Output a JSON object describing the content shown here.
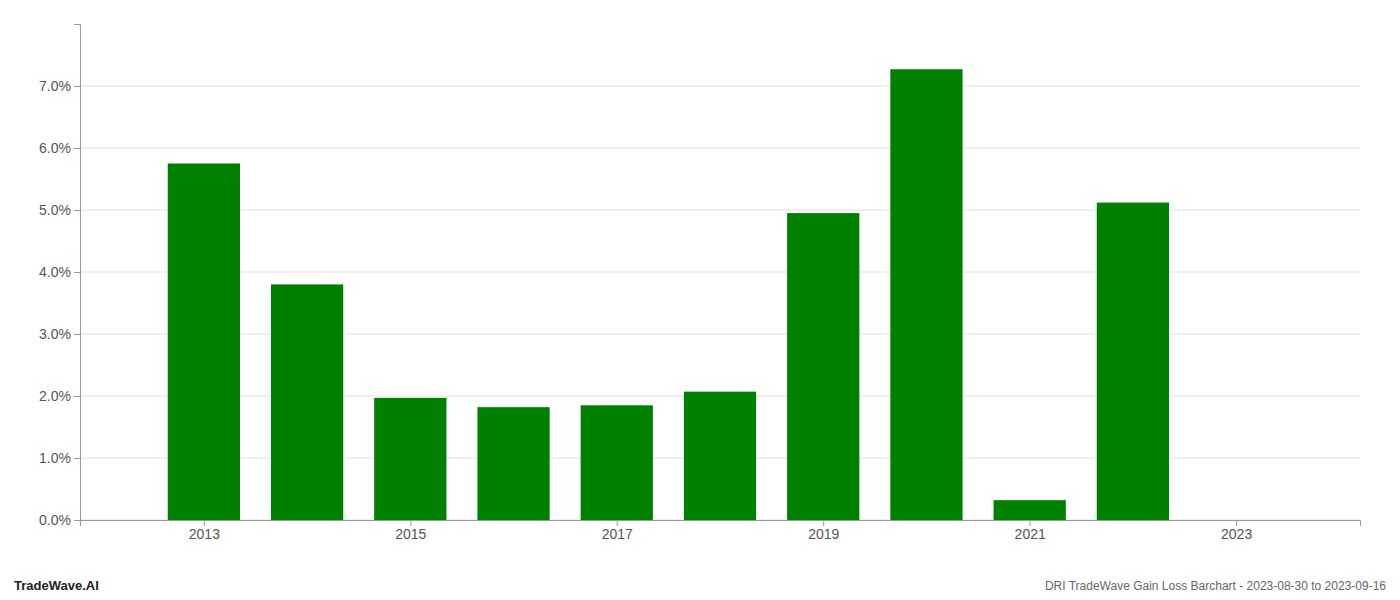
{
  "chart_data": {
    "type": "bar",
    "title": "DRI TradeWave Gain Loss Barchart - 2023-08-30 to 2023-09-16",
    "annotations": [
      "TradeWave.AI"
    ],
    "x": [
      2013,
      2014,
      2015,
      2016,
      2017,
      2018,
      2019,
      2020,
      2021,
      2022
    ],
    "values": [
      0.0575,
      0.038,
      0.0197,
      0.0182,
      0.0185,
      0.0207,
      0.0495,
      0.0727,
      0.0032,
      0.0512
    ],
    "color": "#008000",
    "xlim": [
      2011.8,
      2024.2
    ],
    "xticks": [
      2013,
      2015,
      2017,
      2019,
      2021,
      2023
    ],
    "ylim": [
      0.0,
      0.08
    ],
    "yticks": [
      {
        "value": 0.0,
        "label": "0.0%"
      },
      {
        "value": 0.01,
        "label": "1.0%"
      },
      {
        "value": 0.02,
        "label": "2.0%"
      },
      {
        "value": 0.03,
        "label": "3.0%"
      },
      {
        "value": 0.04,
        "label": "4.0%"
      },
      {
        "value": 0.05,
        "label": "5.0%"
      },
      {
        "value": 0.06,
        "label": "6.0%"
      },
      {
        "value": 0.07,
        "label": "7.0%"
      }
    ],
    "grid": true
  }
}
